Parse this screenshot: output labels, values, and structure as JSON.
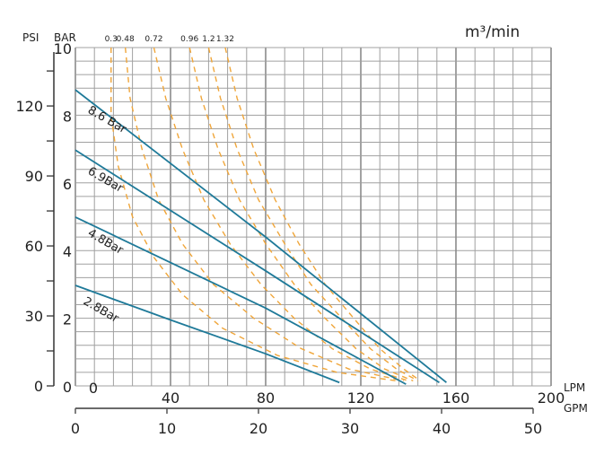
{
  "chart_data": {
    "type": "line",
    "title": "",
    "x_unit_primary": "LPM",
    "x_unit_secondary": "GPM",
    "y_unit_primary": "BAR",
    "y_unit_secondary": "PSI",
    "air_unit": "m³/min",
    "xlim": [
      0,
      200
    ],
    "ylim": [
      0,
      10
    ],
    "lpm_ticks": [
      "0",
      "40",
      "80",
      "120",
      "160",
      "200"
    ],
    "gpm_ticks": [
      "0",
      "10",
      "20",
      "30",
      "40",
      "50"
    ],
    "bar_ticks": [
      "0",
      "2",
      "4",
      "6",
      "8",
      "10"
    ],
    "psi_ticks": [
      "0",
      "30",
      "60",
      "90",
      "120"
    ],
    "grid": true,
    "pressure_series": [
      {
        "name": "8.6 Bar",
        "points": [
          [
            0,
            8.75
          ],
          [
            80,
            4.4
          ],
          [
            156,
            0.1
          ]
        ]
      },
      {
        "name": "6.9Bar",
        "points": [
          [
            0,
            6.97
          ],
          [
            80,
            3.4
          ],
          [
            153,
            0.1
          ]
        ]
      },
      {
        "name": "4.8Bar",
        "points": [
          [
            0,
            4.99
          ],
          [
            80,
            2.3
          ],
          [
            139,
            0.05
          ]
        ]
      },
      {
        "name": "2.8Bar",
        "points": [
          [
            0,
            2.97
          ],
          [
            40,
            1.95
          ],
          [
            80,
            0.95
          ],
          [
            111,
            0.1
          ]
        ]
      }
    ],
    "air_series": [
      {
        "name": "0.3",
        "points": [
          [
            15,
            10
          ],
          [
            15,
            8
          ],
          [
            18,
            6.5
          ],
          [
            24,
            5
          ],
          [
            33,
            3.8
          ],
          [
            45,
            2.7
          ],
          [
            62,
            1.7
          ],
          [
            85,
            0.9
          ],
          [
            110,
            0.4
          ],
          [
            135,
            0.15
          ]
        ]
      },
      {
        "name": "0.48",
        "points": [
          [
            21,
            10
          ],
          [
            23,
            8.5
          ],
          [
            28,
            7
          ],
          [
            35,
            5.5
          ],
          [
            45,
            4.2
          ],
          [
            58,
            3
          ],
          [
            75,
            2
          ],
          [
            95,
            1.1
          ],
          [
            115,
            0.5
          ],
          [
            138,
            0.15
          ]
        ]
      },
      {
        "name": "0.72",
        "points": [
          [
            33,
            10
          ],
          [
            38,
            8.5
          ],
          [
            45,
            7
          ],
          [
            54,
            5.5
          ],
          [
            65,
            4.2
          ],
          [
            78,
            3
          ],
          [
            92,
            2
          ],
          [
            108,
            1.1
          ],
          [
            124,
            0.5
          ],
          [
            140,
            0.15
          ]
        ]
      },
      {
        "name": "0.96",
        "points": [
          [
            48,
            10
          ],
          [
            53,
            8.5
          ],
          [
            60,
            7
          ],
          [
            69,
            5.5
          ],
          [
            80,
            4.2
          ],
          [
            92,
            3
          ],
          [
            105,
            2
          ],
          [
            118,
            1.1
          ],
          [
            130,
            0.5
          ],
          [
            142,
            0.15
          ]
        ]
      },
      {
        "name": "1.2",
        "points": [
          [
            56,
            10
          ],
          [
            61,
            8.5
          ],
          [
            68,
            7
          ],
          [
            77,
            5.5
          ],
          [
            88,
            4.2
          ],
          [
            99,
            3
          ],
          [
            112,
            2
          ],
          [
            124,
            1.1
          ],
          [
            135,
            0.5
          ],
          [
            144,
            0.15
          ]
        ]
      },
      {
        "name": "1.32",
        "points": [
          [
            63,
            10
          ],
          [
            68,
            8.5
          ],
          [
            75,
            7
          ],
          [
            84,
            5.5
          ],
          [
            94,
            4.2
          ],
          [
            105,
            3
          ],
          [
            117,
            2
          ],
          [
            128,
            1.1
          ],
          [
            138,
            0.5
          ],
          [
            145,
            0.15
          ]
        ]
      }
    ],
    "colors": {
      "pressure": "#1f7a99",
      "air": "#f0a63a",
      "grid": "#a0a0a0",
      "major_grid": "#8a8a8a"
    }
  }
}
